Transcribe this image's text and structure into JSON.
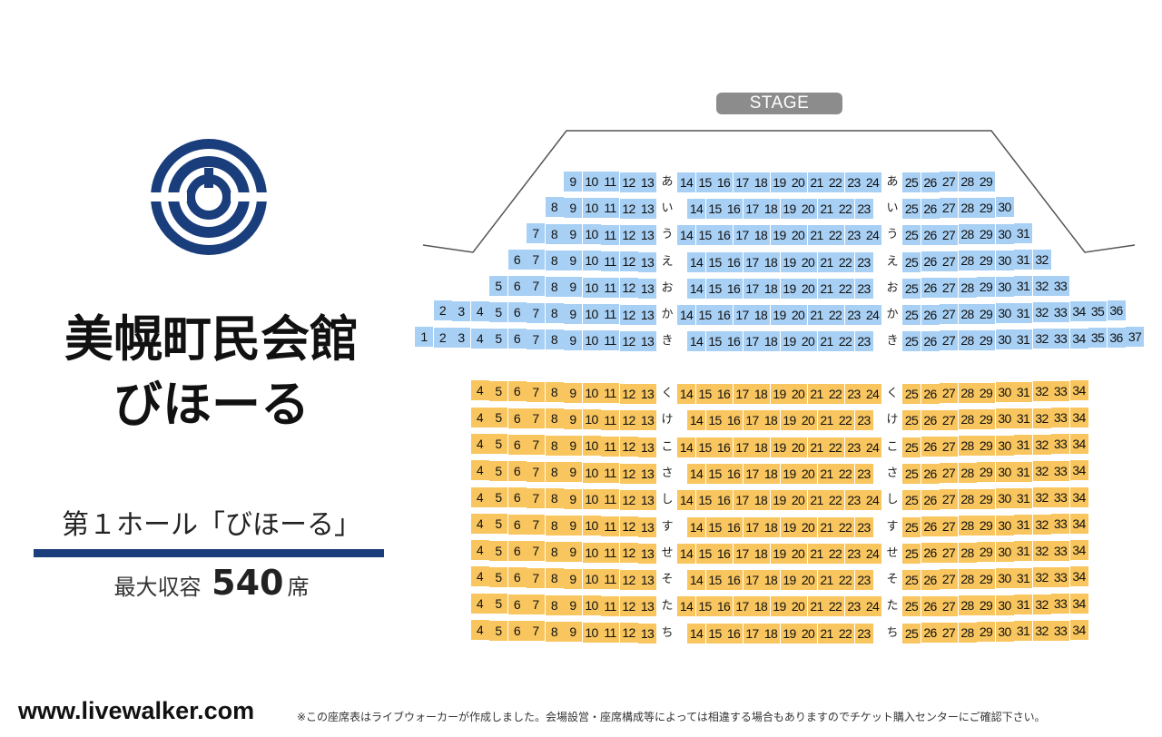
{
  "venue": {
    "name_line1": "美幌町民会館",
    "name_line2": "びほーる",
    "hall_name": "第１ホール「びほーる」",
    "capacity_prefix": "最大収容",
    "capacity_number": "540",
    "capacity_suffix": "席",
    "logo_color": "#1a3d7c"
  },
  "stage_label": "STAGE",
  "footer": {
    "site": "www.livewalker.com",
    "note": "※この座席表はライブウォーカーが作成しました。会場設営・座席構成等によっては相違する場合もありますのでチケット購入センターにご確認下さい。"
  },
  "colors": {
    "floor1": "#a8d0f4",
    "floor2": "#f8c55e",
    "hall_bar": "#1a3d7c",
    "stage": "#8c8c8c"
  },
  "rows": [
    {
      "label": "あ",
      "block": "front",
      "left": [
        9,
        13
      ],
      "center": [
        14,
        24
      ],
      "right": [
        25,
        29
      ]
    },
    {
      "label": "い",
      "block": "front",
      "left": [
        8,
        13
      ],
      "center": [
        14,
        23
      ],
      "right": [
        25,
        30
      ]
    },
    {
      "label": "う",
      "block": "front",
      "left": [
        7,
        13
      ],
      "center": [
        14,
        24
      ],
      "right": [
        25,
        31
      ]
    },
    {
      "label": "え",
      "block": "front",
      "left": [
        6,
        13
      ],
      "center": [
        14,
        23
      ],
      "right": [
        25,
        32
      ]
    },
    {
      "label": "お",
      "block": "front",
      "left": [
        5,
        13
      ],
      "center": [
        14,
        23
      ],
      "right": [
        25,
        33
      ]
    },
    {
      "label": "か",
      "block": "front",
      "left": [
        2,
        13
      ],
      "center": [
        14,
        24
      ],
      "right": [
        25,
        36
      ]
    },
    {
      "label": "き",
      "block": "front",
      "left": [
        1,
        13
      ],
      "center": [
        14,
        23
      ],
      "right": [
        25,
        37
      ]
    },
    {
      "label": "く",
      "block": "back",
      "left": [
        4,
        13
      ],
      "center": [
        14,
        24
      ],
      "right": [
        25,
        34
      ]
    },
    {
      "label": "け",
      "block": "back",
      "left": [
        4,
        13
      ],
      "center": [
        14,
        23
      ],
      "right": [
        25,
        34
      ]
    },
    {
      "label": "こ",
      "block": "back",
      "left": [
        4,
        13
      ],
      "center": [
        14,
        24
      ],
      "right": [
        25,
        34
      ]
    },
    {
      "label": "さ",
      "block": "back",
      "left": [
        4,
        13
      ],
      "center": [
        14,
        23
      ],
      "right": [
        25,
        34
      ]
    },
    {
      "label": "し",
      "block": "back",
      "left": [
        4,
        13
      ],
      "center": [
        14,
        24
      ],
      "right": [
        25,
        34
      ]
    },
    {
      "label": "す",
      "block": "back",
      "left": [
        4,
        13
      ],
      "center": [
        14,
        23
      ],
      "right": [
        25,
        34
      ]
    },
    {
      "label": "せ",
      "block": "back",
      "left": [
        4,
        13
      ],
      "center": [
        14,
        24
      ],
      "right": [
        25,
        34
      ]
    },
    {
      "label": "そ",
      "block": "back",
      "left": [
        4,
        13
      ],
      "center": [
        14,
        23
      ],
      "right": [
        25,
        34
      ]
    },
    {
      "label": "た",
      "block": "back",
      "left": [
        4,
        13
      ],
      "center": [
        14,
        24
      ],
      "right": [
        25,
        34
      ]
    },
    {
      "label": "ち",
      "block": "back",
      "left": [
        4,
        13
      ],
      "center": [
        14,
        23
      ],
      "right": [
        25,
        34
      ]
    }
  ]
}
